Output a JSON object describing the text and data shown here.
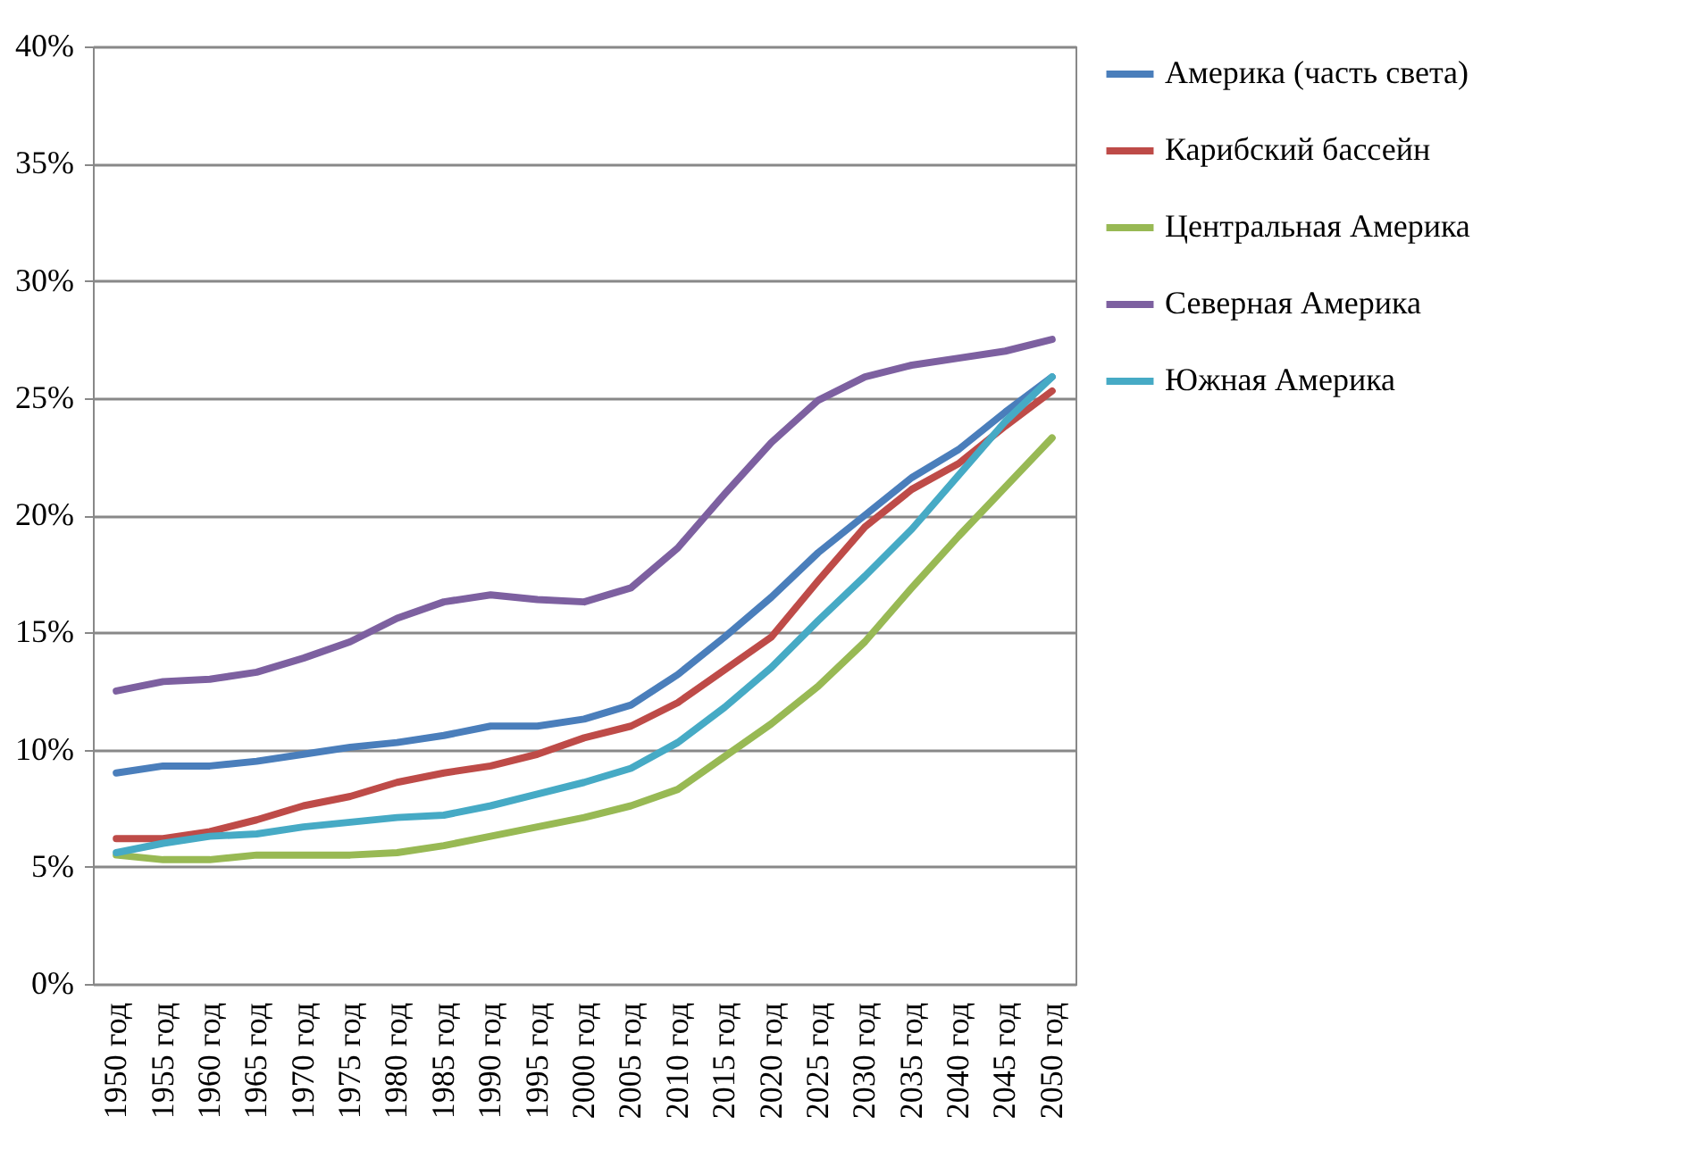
{
  "chart_data": {
    "type": "line",
    "categories": [
      "1950 год",
      "1955 год",
      "1960 год",
      "1965 год",
      "1970 год",
      "1975 год",
      "1980 год",
      "1985 год",
      "1990 год",
      "1995 год",
      "2000 год",
      "2005 год",
      "2010 год",
      "2015 год",
      "2020 год",
      "2025 год",
      "2030 год",
      "2035 год",
      "2040 год",
      "2045 год",
      "2050 год"
    ],
    "series": [
      {
        "name": "Америка (часть света)",
        "color": "#4a7ebb",
        "values": [
          9.0,
          9.3,
          9.3,
          9.5,
          9.8,
          10.1,
          10.3,
          10.6,
          11.0,
          11.0,
          11.3,
          11.9,
          13.2,
          14.8,
          16.5,
          18.4,
          20.0,
          21.6,
          22.8,
          24.4,
          25.9
        ]
      },
      {
        "name": "Карибский бассейн",
        "color": "#be4b48",
        "values": [
          6.2,
          6.2,
          6.5,
          7.0,
          7.6,
          8.0,
          8.6,
          9.0,
          9.3,
          9.8,
          10.5,
          11.0,
          12.0,
          13.4,
          14.8,
          17.2,
          19.5,
          21.1,
          22.2,
          23.8,
          25.3
        ]
      },
      {
        "name": "Центральная Америка",
        "color": "#98b954",
        "values": [
          5.5,
          5.3,
          5.3,
          5.5,
          5.5,
          5.5,
          5.6,
          5.9,
          6.3,
          6.7,
          7.1,
          7.6,
          8.3,
          9.7,
          11.1,
          12.7,
          14.6,
          16.9,
          19.1,
          21.2,
          23.3
        ]
      },
      {
        "name": "Северная Америка",
        "color": "#7d60a0",
        "values": [
          12.5,
          12.9,
          13.0,
          13.3,
          13.9,
          14.6,
          15.6,
          16.3,
          16.6,
          16.4,
          16.3,
          16.9,
          18.6,
          20.9,
          23.1,
          24.9,
          25.9,
          26.4,
          26.7,
          27.0,
          27.5
        ]
      },
      {
        "name": "Южная Америка",
        "color": "#46aac5",
        "values": [
          5.6,
          6.0,
          6.3,
          6.4,
          6.7,
          6.9,
          7.1,
          7.2,
          7.6,
          8.1,
          8.6,
          9.2,
          10.3,
          11.8,
          13.5,
          15.5,
          17.4,
          19.4,
          21.7,
          24.0,
          25.9
        ]
      }
    ],
    "ylim": [
      0,
      40
    ],
    "yticks": [
      {
        "value": 0,
        "label": "0%"
      },
      {
        "value": 5,
        "label": "5%"
      },
      {
        "value": 10,
        "label": "10%"
      },
      {
        "value": 15,
        "label": "15%"
      },
      {
        "value": 20,
        "label": "20%"
      },
      {
        "value": 25,
        "label": "25%"
      },
      {
        "value": 30,
        "label": "30%"
      },
      {
        "value": 35,
        "label": "35%"
      },
      {
        "value": 40,
        "label": "40%"
      }
    ],
    "grid": "y",
    "legend": "right",
    "marker": "none",
    "line_style": "solid"
  }
}
